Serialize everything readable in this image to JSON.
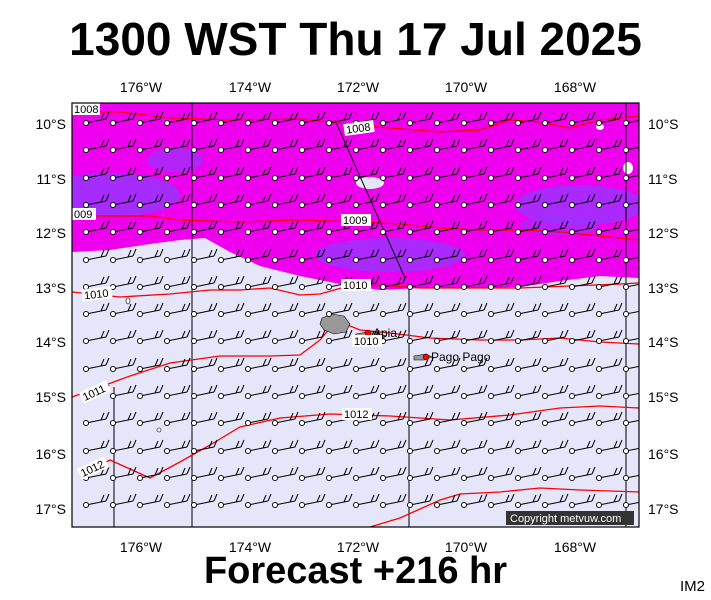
{
  "header": {
    "title": "1300 WST Thu 17 Jul 2025"
  },
  "footer": {
    "forecast": "Forecast +216 hr",
    "code": "IM2"
  },
  "map": {
    "lon_ticks_top": [
      "176°W",
      "174°W",
      "172°W",
      "170°W",
      "168°W"
    ],
    "lon_ticks_bottom": [
      "176°W",
      "174°W",
      "172°W",
      "170°W",
      "168°W"
    ],
    "lat_ticks_left": [
      "10°S",
      "11°S",
      "12°S",
      "13°S",
      "14°S",
      "15°S",
      "16°S",
      "17°S"
    ],
    "lat_ticks_right": [
      "10°S",
      "11°S",
      "12°S",
      "13°S",
      "14°S",
      "15°S",
      "16°S",
      "17°S"
    ],
    "isobar_labels": [
      "1008",
      "1008",
      "009",
      "1009",
      "1010",
      "1010",
      "1010",
      "1011",
      "1012",
      "1012"
    ],
    "places": [
      "Apia",
      "Pago Pago"
    ],
    "copyright": "Copyright metvuw.com",
    "colors": {
      "sea": "#e6e6fa",
      "shade_high": "#ee00ee",
      "shade_core": "#9933ff",
      "isobar": "#ff0000",
      "land": "#999999",
      "place_marker": "#ff0000"
    }
  }
}
